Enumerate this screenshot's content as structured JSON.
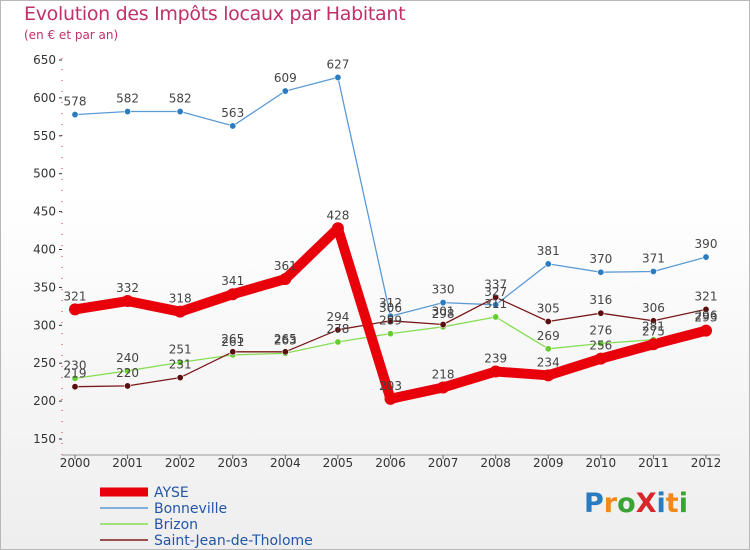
{
  "chart_data": {
    "type": "line",
    "title": "Evolution des Impôts locaux par Habitant",
    "subtitle": "(en € et par an)",
    "xlabel": "",
    "ylabel": "",
    "ylim": [
      150,
      650
    ],
    "yticks": [
      150,
      200,
      250,
      300,
      350,
      400,
      450,
      500,
      550,
      600,
      650
    ],
    "grid": false,
    "legend_position": "bottom-left",
    "x": [
      "2000",
      "2001",
      "2002",
      "2003",
      "2004",
      "2005",
      "2006",
      "2007",
      "2008",
      "2009",
      "2010",
      "2011",
      "2012"
    ],
    "series": [
      {
        "name": "AYSE",
        "color": "#e8000b",
        "values": [
          321,
          332,
          318,
          341,
          361,
          428,
          203,
          218,
          239,
          234,
          256,
          275,
          293
        ],
        "labels": [
          "321",
          "332",
          "318",
          "341",
          "361",
          "428",
          "203",
          "218",
          "239",
          "234",
          "256",
          "275",
          "293"
        ]
      },
      {
        "name": "Bonneville",
        "color": "#5b9bd5",
        "values": [
          578,
          582,
          582,
          563,
          609,
          627,
          312,
          330,
          327,
          381,
          370,
          371,
          390
        ],
        "labels": [
          "578",
          "582",
          "582",
          "563",
          "609",
          "627",
          "312",
          "330",
          "327",
          "381",
          "370",
          "371",
          "390"
        ]
      },
      {
        "name": "Brizon",
        "color": "#88dd55",
        "values": [
          230,
          240,
          251,
          261,
          263,
          278,
          289,
          298,
          311,
          269,
          276,
          281,
          296
        ],
        "labels": [
          "230",
          "240",
          "251",
          "261",
          "263",
          "278",
          "289",
          "298",
          "311",
          "269",
          "276",
          "281",
          "296"
        ]
      },
      {
        "name": "Saint-Jean-de-Tholome",
        "color": "#7a1a1a",
        "values": [
          219,
          220,
          231,
          265,
          265,
          294,
          306,
          301,
          337,
          305,
          316,
          306,
          321
        ],
        "labels": [
          "219",
          "220",
          "231",
          "265",
          "265",
          "294",
          "306",
          "301",
          "337",
          "305",
          "316",
          "306",
          "321"
        ]
      }
    ]
  },
  "logo": {
    "text": "ProXiti",
    "letters": [
      {
        "ch": "P",
        "color": "#2a7bbf"
      },
      {
        "ch": "r",
        "color": "#f08a1c"
      },
      {
        "ch": "o",
        "color": "#3aa335"
      },
      {
        "ch": "X",
        "color": "#d9262a"
      },
      {
        "ch": "i",
        "color": "#2a7bbf"
      },
      {
        "ch": "t",
        "color": "#f08a1c"
      },
      {
        "ch": "i",
        "color": "#3aa335"
      }
    ]
  }
}
